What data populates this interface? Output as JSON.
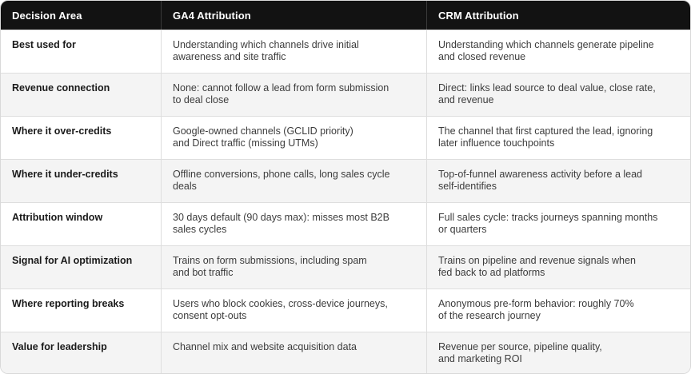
{
  "table": {
    "headers": [
      "Decision Area",
      "GA4 Attribution",
      "CRM Attribution"
    ],
    "rows": [
      {
        "area": "Best used for",
        "ga4": "Understanding which channels drive initial\nawareness and site traffic",
        "crm": "Understanding which channels generate pipeline\nand closed revenue"
      },
      {
        "area": "Revenue connection",
        "ga4": "None: cannot follow a lead from form submission\nto deal close",
        "crm": "Direct: links lead source to deal value, close rate,\nand revenue"
      },
      {
        "area": "Where it over-credits",
        "ga4": "Google-owned channels (GCLID priority)\nand Direct traffic (missing UTMs)",
        "crm": "The channel that first captured the lead, ignoring\nlater influence touchpoints"
      },
      {
        "area": "Where it under-credits",
        "ga4": "Offline conversions, phone calls, long sales cycle\ndeals",
        "crm": "Top-of-funnel awareness activity before a lead\nself-identifies"
      },
      {
        "area": "Attribution window",
        "ga4": "30 days default (90 days max): misses most B2B\nsales cycles",
        "crm": "Full sales cycle: tracks journeys spanning months\nor quarters"
      },
      {
        "area": "Signal for AI optimization",
        "ga4": "Trains on form submissions, including spam\nand bot traffic",
        "crm": "Trains on pipeline and revenue signals when\nfed back to ad platforms"
      },
      {
        "area": "Where reporting breaks",
        "ga4": "Users who block cookies, cross-device journeys,\nconsent opt-outs",
        "crm": "Anonymous pre-form behavior: roughly 70%\nof the research journey"
      },
      {
        "area": "Value for leadership",
        "ga4": "Channel mix and website acquisition data",
        "crm": "Revenue per source, pipeline quality,\nand marketing ROI"
      }
    ]
  }
}
